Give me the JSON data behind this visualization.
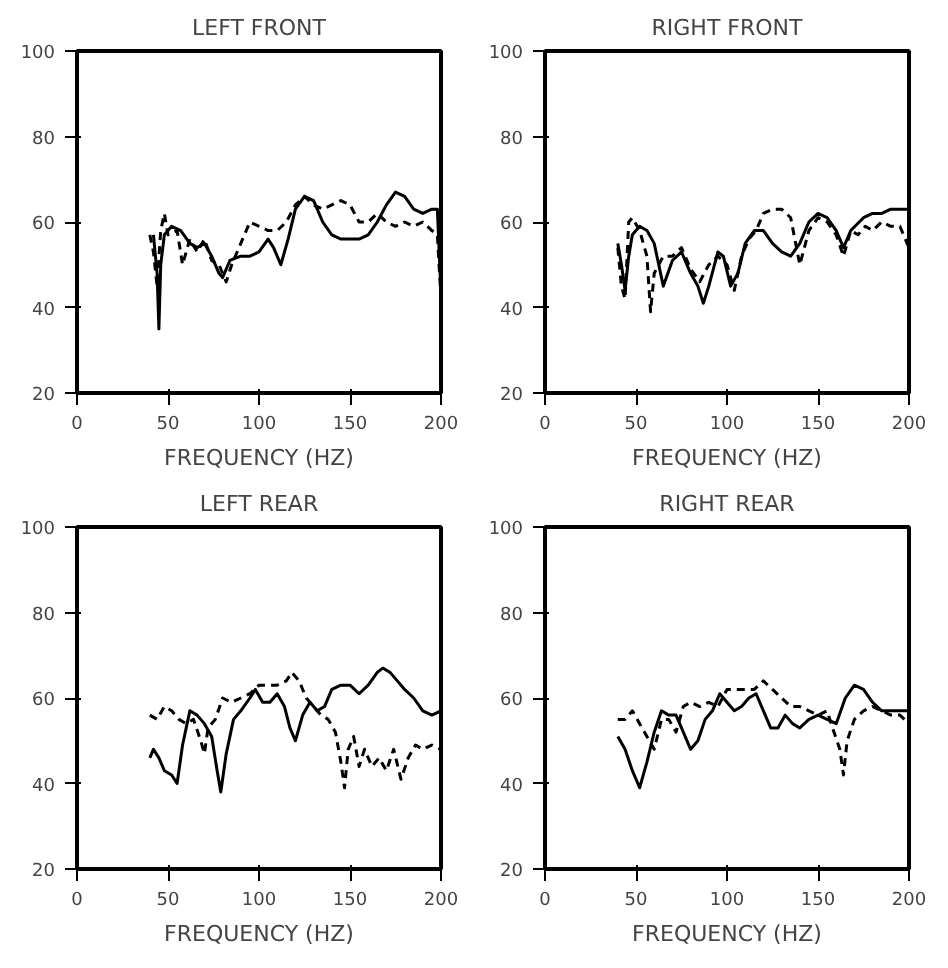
{
  "chart_data": [
    {
      "type": "line",
      "title": "LEFT FRONT",
      "xlabel": "FREQUENCY (HZ)",
      "xlim": [
        0,
        200
      ],
      "ylim": [
        20,
        100
      ],
      "xticks": [
        0,
        50,
        100,
        150,
        200
      ],
      "yticks": [
        20,
        40,
        60,
        80,
        100
      ],
      "grid": false,
      "marker": "none",
      "series": [
        {
          "color": "#000000",
          "line_style": "solid",
          "x": [
            42,
            44,
            45,
            46,
            48,
            52,
            57,
            62,
            66,
            70,
            74,
            78,
            80,
            84,
            90,
            95,
            100,
            105,
            108,
            112,
            116,
            120,
            125,
            130,
            135,
            140,
            145,
            150,
            155,
            160,
            165,
            170,
            175,
            180,
            185,
            190,
            195,
            198,
            200
          ],
          "values": [
            57,
            48,
            35,
            50,
            57,
            59,
            58,
            55,
            54,
            55,
            52,
            48,
            47,
            51,
            52,
            52,
            53,
            56,
            54,
            50,
            56,
            63,
            66,
            65,
            60,
            57,
            56,
            56,
            56,
            57,
            60,
            64,
            67,
            66,
            63,
            62,
            63,
            63,
            43
          ]
        },
        {
          "color": "#000000",
          "line_style": "dashed",
          "x": [
            40,
            42,
            44,
            46,
            48,
            50,
            55,
            58,
            62,
            66,
            70,
            74,
            78,
            82,
            85,
            90,
            95,
            100,
            105,
            110,
            115,
            120,
            125,
            130,
            135,
            140,
            145,
            150,
            155,
            160,
            165,
            170,
            175,
            180,
            185,
            190,
            195,
            198,
            200
          ],
          "values": [
            57,
            53,
            45,
            58,
            62,
            57,
            58,
            50,
            56,
            53,
            56,
            51,
            50,
            46,
            50,
            55,
            60,
            59,
            58,
            58,
            60,
            64,
            66,
            64,
            63,
            64,
            65,
            64,
            60,
            60,
            62,
            60,
            59,
            60,
            59,
            60,
            58,
            57,
            42
          ]
        }
      ]
    },
    {
      "type": "line",
      "title": "RIGHT FRONT",
      "xlabel": "FREQUENCY (HZ)",
      "xlim": [
        0,
        200
      ],
      "ylim": [
        20,
        100
      ],
      "xticks": [
        0,
        50,
        100,
        150,
        200
      ],
      "yticks": [
        20,
        40,
        60,
        80,
        100
      ],
      "grid": false,
      "marker": "none",
      "series": [
        {
          "color": "#000000",
          "line_style": "solid",
          "x": [
            40,
            42,
            44,
            46,
            48,
            52,
            56,
            60,
            65,
            70,
            75,
            80,
            84,
            87,
            90,
            95,
            98,
            102,
            106,
            110,
            115,
            120,
            125,
            130,
            135,
            140,
            145,
            150,
            155,
            160,
            164,
            168,
            175,
            180,
            185,
            190,
            195,
            200
          ],
          "values": [
            55,
            50,
            44,
            52,
            57,
            59,
            58,
            55,
            45,
            51,
            53,
            48,
            45,
            41,
            45,
            53,
            52,
            45,
            48,
            55,
            58,
            58,
            55,
            53,
            52,
            55,
            60,
            62,
            61,
            58,
            54,
            58,
            61,
            62,
            62,
            63,
            63,
            63
          ]
        },
        {
          "color": "#000000",
          "line_style": "dashed",
          "x": [
            40,
            42,
            44,
            46,
            48,
            52,
            56,
            58,
            60,
            65,
            70,
            75,
            80,
            85,
            90,
            95,
            100,
            104,
            108,
            112,
            116,
            120,
            125,
            130,
            135,
            140,
            145,
            150,
            155,
            160,
            164,
            168,
            172,
            176,
            180,
            185,
            190,
            195,
            200
          ],
          "values": [
            54,
            45,
            42,
            60,
            61,
            58,
            52,
            39,
            48,
            52,
            52,
            54,
            49,
            46,
            50,
            52,
            50,
            44,
            52,
            56,
            58,
            62,
            63,
            63,
            61,
            50,
            58,
            61,
            60,
            57,
            52,
            58,
            57,
            59,
            58,
            60,
            59,
            59,
            54
          ]
        }
      ]
    },
    {
      "type": "line",
      "title": "LEFT REAR",
      "xlabel": "FREQUENCY (HZ)",
      "xlim": [
        0,
        200
      ],
      "ylim": [
        20,
        100
      ],
      "xticks": [
        0,
        50,
        100,
        150,
        200
      ],
      "yticks": [
        20,
        40,
        60,
        80,
        100
      ],
      "grid": false,
      "marker": "none",
      "series": [
        {
          "color": "#000000",
          "line_style": "solid",
          "x": [
            40,
            42,
            45,
            48,
            52,
            55,
            58,
            62,
            66,
            70,
            74,
            77,
            79,
            82,
            86,
            90,
            95,
            98,
            102,
            106,
            110,
            114,
            117,
            120,
            124,
            128,
            132,
            136,
            140,
            145,
            150,
            155,
            160,
            165,
            168,
            172,
            176,
            180,
            185,
            190,
            195,
            200
          ],
          "values": [
            46,
            48,
            46,
            43,
            42,
            40,
            49,
            57,
            56,
            54,
            51,
            43,
            38,
            47,
            55,
            57,
            60,
            62,
            59,
            59,
            61,
            58,
            53,
            50,
            56,
            59,
            57,
            58,
            62,
            63,
            63,
            61,
            63,
            66,
            67,
            66,
            64,
            62,
            60,
            57,
            56,
            57
          ]
        },
        {
          "color": "#000000",
          "line_style": "dashed",
          "x": [
            40,
            44,
            48,
            52,
            56,
            60,
            64,
            68,
            70,
            72,
            76,
            80,
            85,
            90,
            95,
            100,
            105,
            110,
            115,
            118,
            122,
            126,
            130,
            134,
            138,
            142,
            145,
            147,
            149,
            152,
            155,
            158,
            162,
            166,
            170,
            174,
            178,
            182,
            186,
            190,
            195,
            200
          ],
          "values": [
            56,
            55,
            58,
            57,
            55,
            54,
            55,
            50,
            47,
            53,
            55,
            60,
            59,
            60,
            61,
            63,
            63,
            63,
            64,
            66,
            64,
            60,
            58,
            56,
            55,
            52,
            45,
            39,
            48,
            51,
            44,
            48,
            44,
            46,
            43,
            48,
            41,
            46,
            49,
            48,
            49,
            48
          ]
        }
      ]
    },
    {
      "type": "line",
      "title": "RIGHT REAR",
      "xlabel": "FREQUENCY (HZ)",
      "xlim": [
        0,
        200
      ],
      "ylim": [
        20,
        100
      ],
      "xticks": [
        0,
        50,
        100,
        150,
        200
      ],
      "yticks": [
        20,
        40,
        60,
        80,
        100
      ],
      "grid": false,
      "marker": "none",
      "series": [
        {
          "color": "#000000",
          "line_style": "solid",
          "x": [
            40,
            44,
            48,
            52,
            56,
            60,
            64,
            68,
            72,
            76,
            80,
            84,
            88,
            92,
            96,
            100,
            104,
            108,
            112,
            116,
            120,
            124,
            128,
            132,
            136,
            140,
            145,
            150,
            155,
            160,
            165,
            170,
            175,
            180,
            185,
            190,
            195,
            200
          ],
          "values": [
            51,
            48,
            43,
            39,
            45,
            52,
            57,
            56,
            56,
            52,
            48,
            50,
            55,
            57,
            61,
            59,
            57,
            58,
            60,
            61,
            57,
            53,
            53,
            56,
            54,
            53,
            55,
            56,
            55,
            54,
            60,
            63,
            62,
            59,
            57,
            57,
            57,
            57
          ]
        },
        {
          "color": "#000000",
          "line_style": "dashed",
          "x": [
            40,
            44,
            48,
            52,
            56,
            60,
            64,
            68,
            72,
            76,
            80,
            85,
            90,
            95,
            100,
            105,
            110,
            115,
            120,
            125,
            130,
            135,
            140,
            145,
            150,
            155,
            158,
            162,
            164,
            166,
            170,
            175,
            180,
            185,
            190,
            195,
            200
          ],
          "values": [
            55,
            55,
            57,
            54,
            51,
            48,
            55,
            55,
            52,
            58,
            59,
            58,
            59,
            58,
            62,
            62,
            62,
            62,
            64,
            62,
            60,
            58,
            58,
            57,
            56,
            57,
            53,
            48,
            42,
            50,
            55,
            57,
            58,
            57,
            56,
            56,
            54
          ]
        }
      ]
    }
  ]
}
